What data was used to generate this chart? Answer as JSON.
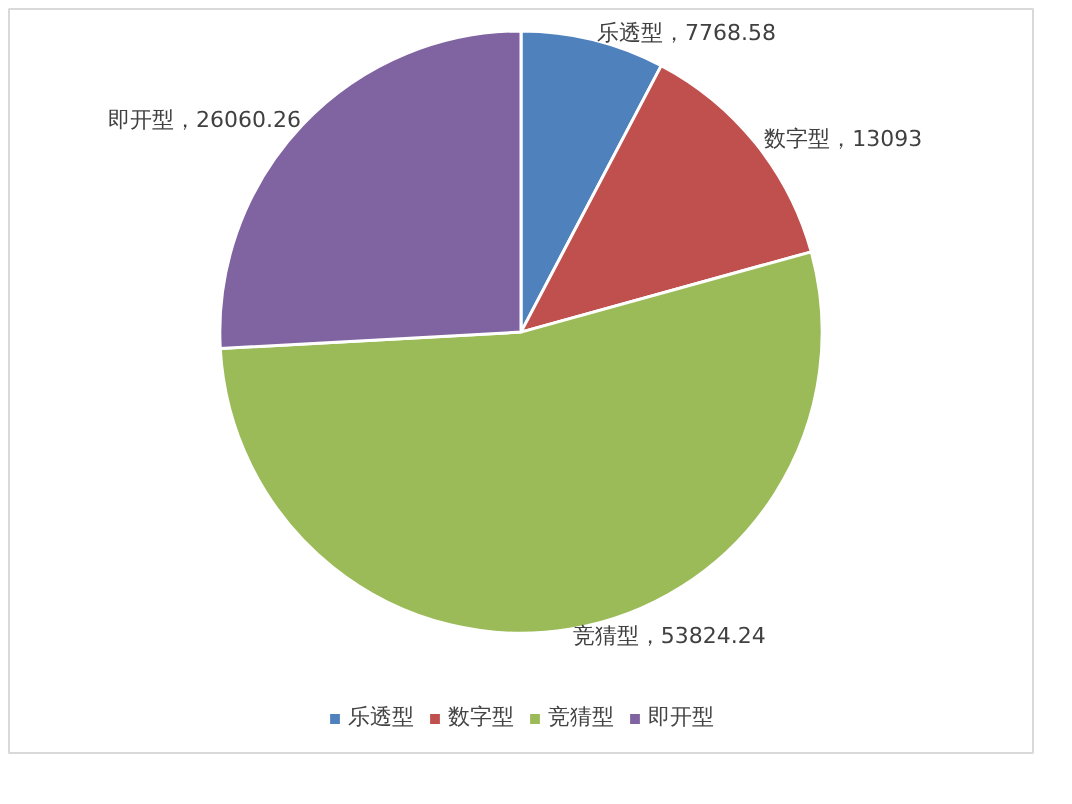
{
  "chart_data": {
    "type": "pie",
    "categories": [
      "乐透型",
      "数字型",
      "竞猜型",
      "即开型"
    ],
    "values": [
      7768.58,
      13093,
      53824.24,
      26060.26
    ],
    "colors": [
      "#4f81bd",
      "#c0504d",
      "#9bbb59",
      "#8064a2"
    ],
    "value_labels": [
      "，7768.58",
      "，13093",
      "，53824.24",
      "，26060.26"
    ],
    "legend": "bottom"
  }
}
